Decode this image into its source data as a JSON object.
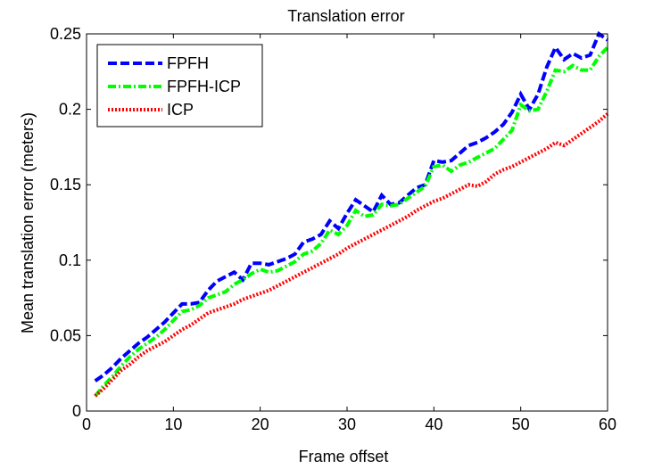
{
  "chart_data": {
    "type": "line",
    "title": "Translation error",
    "xlabel": "Frame offset",
    "ylabel": "Mean translation error (meters)",
    "xlim": [
      0,
      60
    ],
    "ylim": [
      0,
      0.25
    ],
    "xticks": [
      0,
      10,
      20,
      30,
      40,
      50,
      60
    ],
    "yticks": [
      0,
      0.05,
      0.1,
      0.15,
      0.2,
      0.25
    ],
    "xtick_labels": [
      "0",
      "10",
      "20",
      "30",
      "40",
      "50",
      "60"
    ],
    "ytick_labels": [
      "0",
      "0.05",
      "0.1",
      "0.15",
      "0.2",
      "0.25"
    ],
    "grid": false,
    "legend_position": "top-left",
    "x": [
      1,
      2,
      3,
      4,
      5,
      6,
      7,
      8,
      9,
      10,
      11,
      12,
      13,
      14,
      15,
      16,
      17,
      18,
      19,
      20,
      21,
      22,
      23,
      24,
      25,
      26,
      27,
      28,
      29,
      30,
      31,
      32,
      33,
      34,
      35,
      36,
      37,
      38,
      39,
      40,
      41,
      42,
      43,
      44,
      45,
      46,
      47,
      48,
      49,
      50,
      51,
      52,
      53,
      54,
      55,
      56,
      57,
      58,
      59,
      60
    ],
    "series": [
      {
        "name": "FPFH",
        "color": "#0000ff",
        "style": "dashed",
        "values": [
          0.02,
          0.024,
          0.029,
          0.035,
          0.04,
          0.045,
          0.049,
          0.054,
          0.059,
          0.065,
          0.071,
          0.071,
          0.072,
          0.08,
          0.086,
          0.089,
          0.092,
          0.087,
          0.098,
          0.098,
          0.097,
          0.099,
          0.101,
          0.104,
          0.112,
          0.114,
          0.117,
          0.126,
          0.121,
          0.131,
          0.14,
          0.136,
          0.132,
          0.143,
          0.137,
          0.138,
          0.143,
          0.148,
          0.15,
          0.166,
          0.165,
          0.166,
          0.171,
          0.176,
          0.178,
          0.181,
          0.185,
          0.19,
          0.198,
          0.21,
          0.2,
          0.21,
          0.228,
          0.241,
          0.233,
          0.237,
          0.234,
          0.236,
          0.25,
          0.246
        ]
      },
      {
        "name": "FPFH-ICP",
        "color": "#00ff00",
        "style": "dash-dot",
        "values": [
          0.01,
          0.017,
          0.023,
          0.03,
          0.036,
          0.041,
          0.045,
          0.049,
          0.054,
          0.06,
          0.066,
          0.067,
          0.07,
          0.075,
          0.077,
          0.079,
          0.084,
          0.087,
          0.091,
          0.094,
          0.092,
          0.093,
          0.096,
          0.099,
          0.104,
          0.106,
          0.111,
          0.12,
          0.117,
          0.123,
          0.133,
          0.129,
          0.13,
          0.137,
          0.136,
          0.137,
          0.141,
          0.145,
          0.149,
          0.162,
          0.163,
          0.159,
          0.163,
          0.165,
          0.168,
          0.171,
          0.174,
          0.18,
          0.186,
          0.203,
          0.199,
          0.2,
          0.212,
          0.226,
          0.225,
          0.229,
          0.226,
          0.226,
          0.235,
          0.241
        ]
      },
      {
        "name": "ICP",
        "color": "#ff0000",
        "style": "dotted",
        "values": [
          0.01,
          0.015,
          0.021,
          0.027,
          0.031,
          0.036,
          0.04,
          0.043,
          0.046,
          0.05,
          0.054,
          0.057,
          0.061,
          0.065,
          0.067,
          0.069,
          0.071,
          0.074,
          0.076,
          0.078,
          0.08,
          0.083,
          0.086,
          0.089,
          0.092,
          0.095,
          0.098,
          0.101,
          0.104,
          0.108,
          0.111,
          0.114,
          0.117,
          0.12,
          0.123,
          0.126,
          0.129,
          0.133,
          0.136,
          0.139,
          0.141,
          0.144,
          0.147,
          0.15,
          0.149,
          0.152,
          0.157,
          0.16,
          0.162,
          0.165,
          0.168,
          0.171,
          0.174,
          0.178,
          0.176,
          0.18,
          0.184,
          0.188,
          0.192,
          0.197
        ]
      }
    ]
  }
}
